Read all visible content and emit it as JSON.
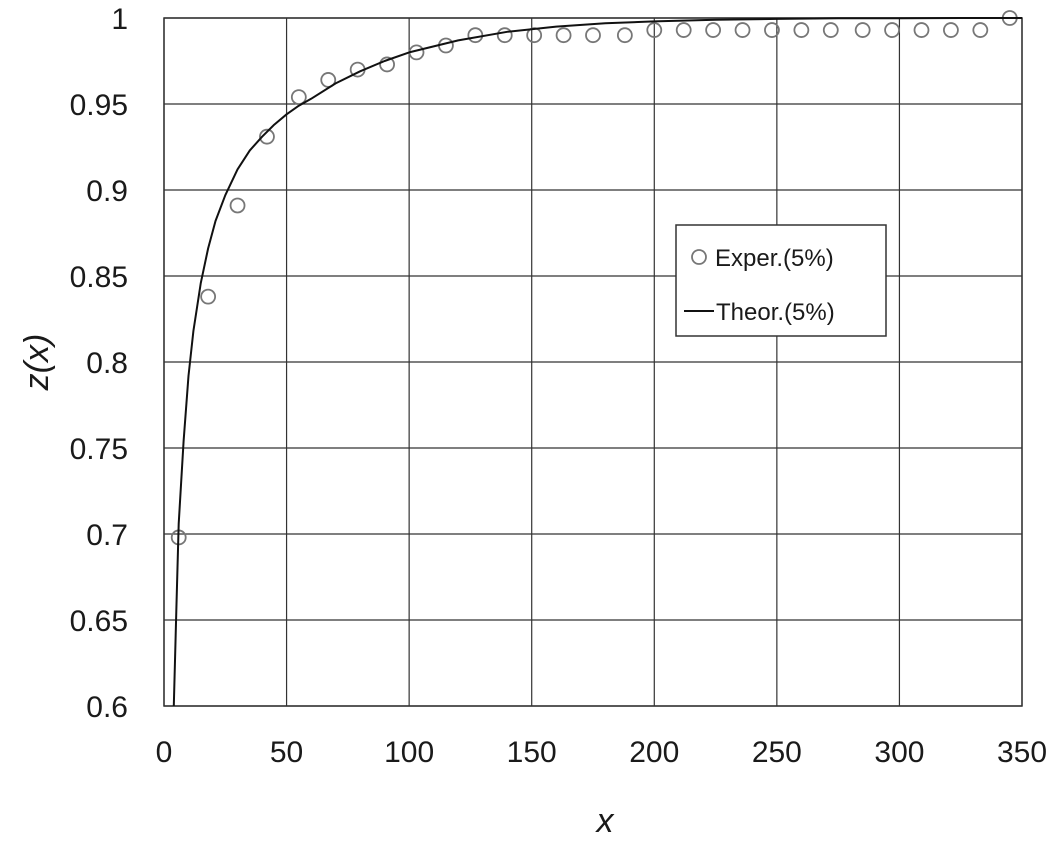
{
  "chart_data": {
    "type": "scatter",
    "title": "",
    "xlabel": "x",
    "ylabel": "z(x)",
    "xlim": [
      0,
      350
    ],
    "ylim": [
      0.6,
      1
    ],
    "grid": true,
    "legend_position": "right-middle",
    "x_ticks": [
      "0",
      "50",
      "100",
      "150",
      "200",
      "250",
      "300",
      "350"
    ],
    "y_ticks": [
      "0.6",
      "0.65",
      "0.7",
      "0.75",
      "0.8",
      "0.85",
      "0.9",
      "0.95",
      "1"
    ],
    "series": [
      {
        "name": "Exper.(5%)",
        "kind": "scatter",
        "marker": "open-circle",
        "color": "#777777",
        "x": [
          6,
          18,
          30,
          42,
          55,
          67,
          79,
          91,
          103,
          115,
          127,
          139,
          151,
          163,
          175,
          188,
          200,
          212,
          224,
          236,
          248,
          260,
          272,
          285,
          297,
          309,
          321,
          333,
          345
        ],
        "y": [
          0.698,
          0.838,
          0.891,
          0.931,
          0.954,
          0.964,
          0.97,
          0.973,
          0.98,
          0.984,
          0.99,
          0.99,
          0.99,
          0.99,
          0.99,
          0.99,
          0.993,
          0.993,
          0.993,
          0.993,
          0.993,
          0.993,
          0.993,
          0.993,
          0.993,
          0.993,
          0.993,
          0.993,
          1.0
        ]
      },
      {
        "name": "Theor.(5%)",
        "kind": "line",
        "color": "#111111",
        "x": [
          4,
          5,
          6,
          8,
          10,
          12,
          15,
          18,
          21,
          25,
          30,
          35,
          40,
          45,
          50,
          55,
          60,
          70,
          80,
          90,
          100,
          120,
          140,
          160,
          180,
          200,
          225,
          250,
          275,
          300,
          325,
          350
        ],
        "y": [
          0.6,
          0.655,
          0.706,
          0.754,
          0.792,
          0.818,
          0.846,
          0.866,
          0.882,
          0.897,
          0.912,
          0.923,
          0.931,
          0.938,
          0.944,
          0.949,
          0.953,
          0.962,
          0.969,
          0.975,
          0.98,
          0.987,
          0.992,
          0.995,
          0.997,
          0.998,
          0.999,
          0.9995,
          0.9998,
          0.9999,
          1.0,
          1.0
        ]
      }
    ]
  }
}
